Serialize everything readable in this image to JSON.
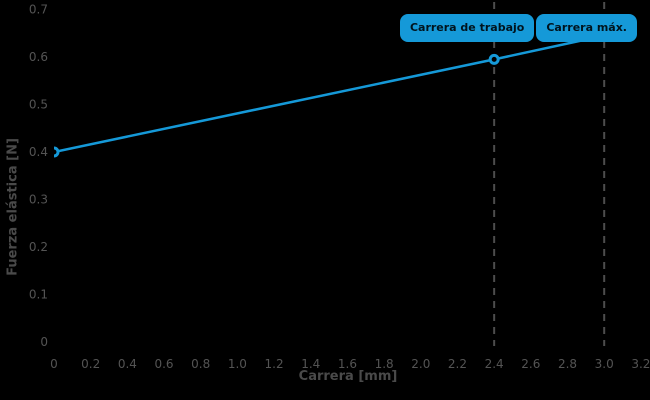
{
  "chart_data": {
    "type": "line",
    "title": "",
    "xlabel": "Carrera [mm]",
    "ylabel": "Fuerza elástica [N]",
    "xlim": [
      0,
      3.2
    ],
    "ylim": [
      0,
      0.7
    ],
    "grid": false,
    "background": "#000000",
    "x_ticks": [
      "0",
      "0.2",
      "0.4",
      "0.6",
      "0.8",
      "1.0",
      "1.2",
      "1.4",
      "1.6",
      "1.8",
      "2.0",
      "2.2",
      "2.4",
      "2.6",
      "2.8",
      "3.0",
      "3.2"
    ],
    "y_ticks": [
      "0",
      "0.1",
      "0.2",
      "0.3",
      "0.4",
      "0.5",
      "0.6",
      "0.7"
    ],
    "series": [
      {
        "name": "fuerza-elastica",
        "color": "#1599d8",
        "points": [
          [
            0,
            0.4
          ],
          [
            2.4,
            0.595
          ],
          [
            3.0,
            0.645
          ]
        ],
        "marker_points": [
          [
            0,
            0.4
          ],
          [
            2.4,
            0.595
          ]
        ]
      }
    ],
    "reference_lines": [
      {
        "x": 2.4,
        "label": "Carrera de trabajo",
        "style": "dashed",
        "color": "#4d4d4d"
      },
      {
        "x": 3.0,
        "label": "Carrera máx.",
        "style": "dashed",
        "color": "#4d4d4d"
      }
    ]
  },
  "annotations": {
    "carrera_trabajo": "Carrera de trabajo",
    "carrera_max": "Carrera máx."
  },
  "colors": {
    "background": "#000000",
    "line": "#1599d8",
    "chip_background": "#1599d8",
    "chip_text": "#00141e",
    "tick_text": "#545454",
    "axis_title_text": "#4a4a4a",
    "dashed_reference": "#4d4d4d"
  }
}
